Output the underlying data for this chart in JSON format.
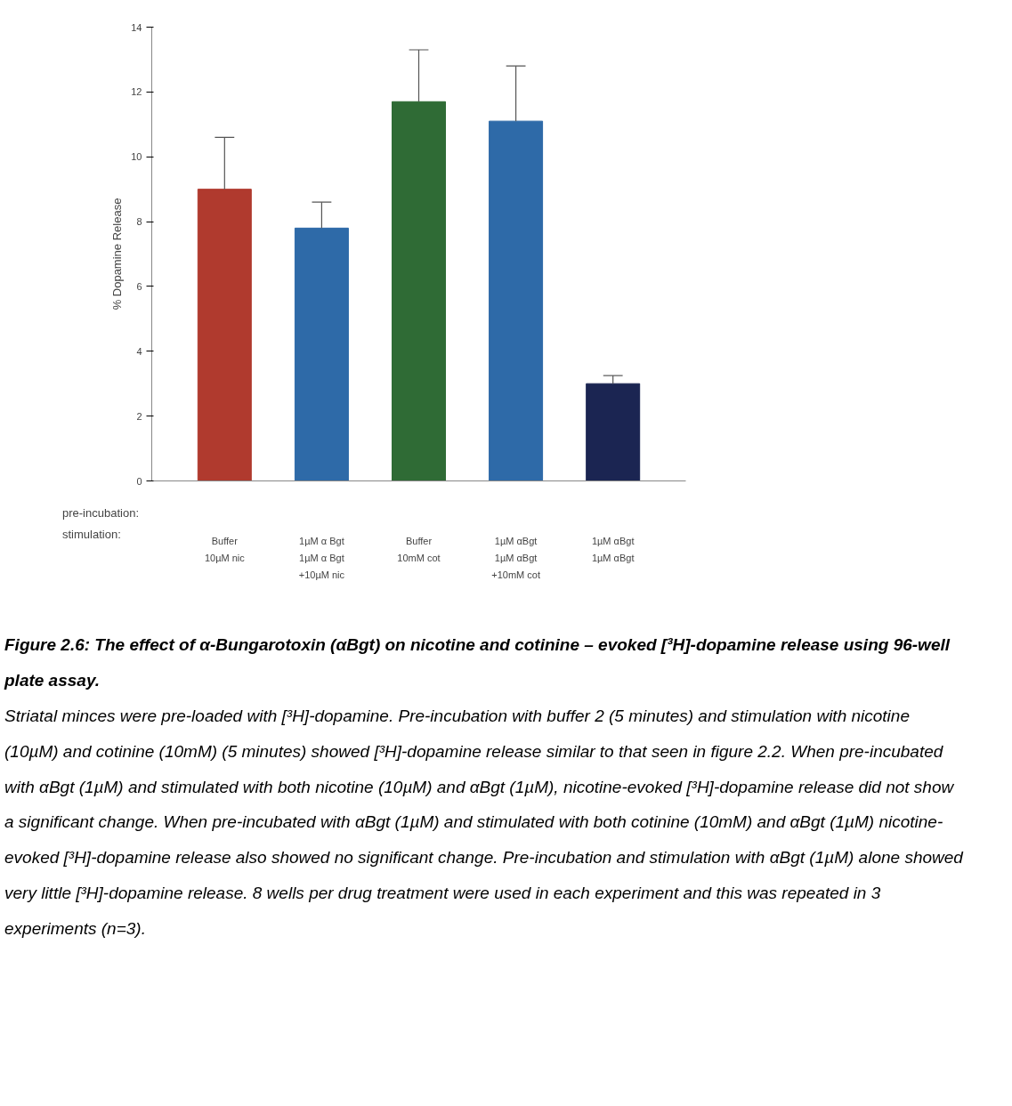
{
  "chart_data": {
    "type": "bar",
    "title": "Figure 2.6: The effect of α-Bungarotoxin (αBgt) on nicotine and cotinine – evoked [³H]-dopamine release using 96-well plate assay.",
    "ylabel": "% Dopamine Release",
    "categories": [
      "Buffer\n10µM nic",
      "1µM α Bgt\n1µM α Bgt\n+10µM nic",
      "Buffer\n10mM cot",
      "1µM αBgt\n1µM αBgt\n+10mM cot",
      "1µM αBgt\n1µM αBgt"
    ],
    "values": [
      9.0,
      7.8,
      11.7,
      11.1,
      3.0
    ],
    "colors": [
      "#b03a2e",
      "#2e6aa8",
      "#2f6b35",
      "#2e6aa8",
      "#1b2552"
    ],
    "errors": [
      [
        9.0,
        10.6
      ],
      [
        7.8,
        8.6
      ],
      [
        11.7,
        13.3
      ],
      [
        11.1,
        12.8
      ],
      [
        3.0,
        3.25
      ]
    ],
    "ylim": [
      0,
      14
    ],
    "yticks": [
      0,
      2,
      4,
      6,
      8,
      10,
      12,
      14
    ],
    "grid": false,
    "annotations": [
      "pre-incubation:\nstimulation:",
      "Striatal minces were pre-loaded with [³H]-dopamine.  Pre-incubation with buffer 2 (5 minutes) and stimulation with nicotine (10µM) and cotinine (10mM) (5 minutes) showed [³H]-dopamine release similar to that seen in figure 2.2.  When pre-incubated with αBgt (1µM) and stimulated with both nicotine (10µM) and αBgt (1µM), nicotine-evoked [³H]-dopamine release did not show a significant change.  When pre-incubated with αBgt (1µM) and stimulated with both cotinine (10mM) and αBgt (1µM) nicotine-evoked [³H]-dopamine release also showed no significant change.  Pre-incubation and stimulation with αBgt (1µM) alone showed very little [³H]-dopamine release.  8 wells per drug treatment were used in each experiment and this was repeated in 3 experiments (n=3)."
    ]
  }
}
